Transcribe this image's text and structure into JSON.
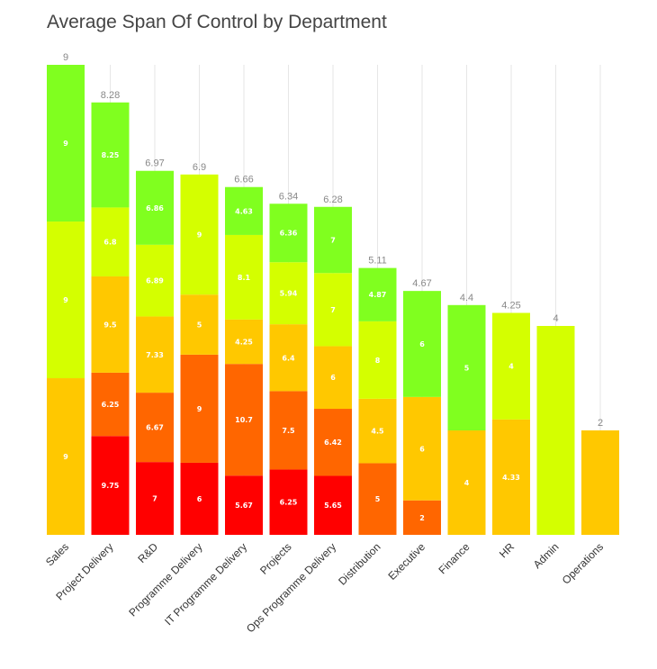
{
  "chart_data": {
    "type": "bar",
    "stacked": true,
    "title": "Average Span Of Control by Department",
    "xlabel": "",
    "ylabel": "",
    "ylim": [
      0,
      9
    ],
    "grid": true,
    "categories": [
      "Sales",
      "Project Delivery",
      "R&D",
      "Programme Delivery",
      "IT Programme Delivery",
      "Projects",
      "Ops Programme Delivery",
      "Distribution",
      "Executive",
      "Finance",
      "HR",
      "Admin",
      "Operations"
    ],
    "totals": [
      "9",
      "8.28",
      "6.97",
      "6.9",
      "6.66",
      "6.34",
      "6.28",
      "5.11",
      "4.67",
      "4.4",
      "4.25",
      "4",
      "2"
    ],
    "colors": {
      "red": "#ff0000",
      "dark_orange": "#ff6600",
      "amber": "#ffc800",
      "yellow_green": "#d4ff00",
      "green": "#80ff1f"
    },
    "bars": [
      {
        "category": "Sales",
        "segments": [
          {
            "color": "amber",
            "label": "9",
            "fraction": 0.3333
          },
          {
            "color": "yellow_green",
            "label": "9",
            "fraction": 0.3333
          },
          {
            "color": "green",
            "label": "9",
            "fraction": 0.3334
          }
        ]
      },
      {
        "category": "Project Delivery",
        "segments": [
          {
            "color": "red",
            "label": "9.75",
            "fraction": 0.2285
          },
          {
            "color": "dark_orange",
            "label": "6.25",
            "fraction": 0.1465
          },
          {
            "color": "amber",
            "label": "9.5",
            "fraction": 0.2227
          },
          {
            "color": "yellow_green",
            "label": "6.8",
            "fraction": 0.1594
          },
          {
            "color": "green",
            "label": "8.25",
            "fraction": 0.2429
          }
        ]
      },
      {
        "category": "R&D",
        "segments": [
          {
            "color": "red",
            "label": "7",
            "fraction": 0.2
          },
          {
            "color": "dark_orange",
            "label": "6.67",
            "fraction": 0.1906
          },
          {
            "color": "amber",
            "label": "7.33",
            "fraction": 0.2094
          },
          {
            "color": "yellow_green",
            "label": "6.89",
            "fraction": 0.1969
          },
          {
            "color": "green",
            "label": "6.86",
            "fraction": 0.2031
          }
        ]
      },
      {
        "category": "Programme Delivery",
        "segments": [
          {
            "color": "red",
            "label": "6",
            "fraction": 0.2
          },
          {
            "color": "dark_orange",
            "label": "9",
            "fraction": 0.3
          },
          {
            "color": "amber",
            "label": "5",
            "fraction": 0.1667
          },
          {
            "color": "yellow_green",
            "label": "9",
            "fraction": 0.3333
          }
        ]
      },
      {
        "category": "IT Programme Delivery",
        "segments": [
          {
            "color": "red",
            "label": "5.67",
            "fraction": 0.1703
          },
          {
            "color": "dark_orange",
            "label": "10.7",
            "fraction": 0.3211
          },
          {
            "color": "amber",
            "label": "4.25",
            "fraction": 0.1276
          },
          {
            "color": "yellow_green",
            "label": "8.1",
            "fraction": 0.2432
          },
          {
            "color": "green",
            "label": "4.63",
            "fraction": 0.1378
          }
        ]
      },
      {
        "category": "Projects",
        "segments": [
          {
            "color": "red",
            "label": "6.25",
            "fraction": 0.1973
          },
          {
            "color": "dark_orange",
            "label": "7.5",
            "fraction": 0.2367
          },
          {
            "color": "amber",
            "label": "6.4",
            "fraction": 0.202
          },
          {
            "color": "yellow_green",
            "label": "5.94",
            "fraction": 0.1874
          },
          {
            "color": "green",
            "label": "6.36",
            "fraction": 0.1766
          }
        ]
      },
      {
        "category": "Ops Programme Delivery",
        "segments": [
          {
            "color": "red",
            "label": "5.65",
            "fraction": 0.1799
          },
          {
            "color": "dark_orange",
            "label": "6.42",
            "fraction": 0.2044
          },
          {
            "color": "amber",
            "label": "6",
            "fraction": 0.191
          },
          {
            "color": "yellow_green",
            "label": "7",
            "fraction": 0.2229
          },
          {
            "color": "green",
            "label": "7",
            "fraction": 0.2018
          }
        ]
      },
      {
        "category": "Distribution",
        "segments": [
          {
            "color": "dark_orange",
            "label": "5",
            "fraction": 0.2684
          },
          {
            "color": "amber",
            "label": "4.5",
            "fraction": 0.2415
          },
          {
            "color": "yellow_green",
            "label": "8",
            "fraction": 0.2902
          },
          {
            "color": "green",
            "label": "4.87",
            "fraction": 0.1999
          }
        ]
      },
      {
        "category": "Executive",
        "segments": [
          {
            "color": "dark_orange",
            "label": "2",
            "fraction": 0.1413
          },
          {
            "color": "amber",
            "label": "6",
            "fraction": 0.424
          },
          {
            "color": "green",
            "label": "6",
            "fraction": 0.4347
          }
        ]
      },
      {
        "category": "Finance",
        "segments": [
          {
            "color": "amber",
            "label": "4",
            "fraction": 0.4545
          },
          {
            "color": "green",
            "label": "5",
            "fraction": 0.5455
          }
        ]
      },
      {
        "category": "HR",
        "segments": [
          {
            "color": "amber",
            "label": "4.33",
            "fraction": 0.5197
          },
          {
            "color": "yellow_green",
            "label": "4",
            "fraction": 0.4803
          }
        ]
      },
      {
        "category": "Admin",
        "segments": [
          {
            "color": "yellow_green",
            "label": "",
            "fraction": 1.0
          }
        ]
      },
      {
        "category": "Operations",
        "segments": [
          {
            "color": "amber",
            "label": "",
            "fraction": 1.0
          }
        ]
      }
    ]
  }
}
